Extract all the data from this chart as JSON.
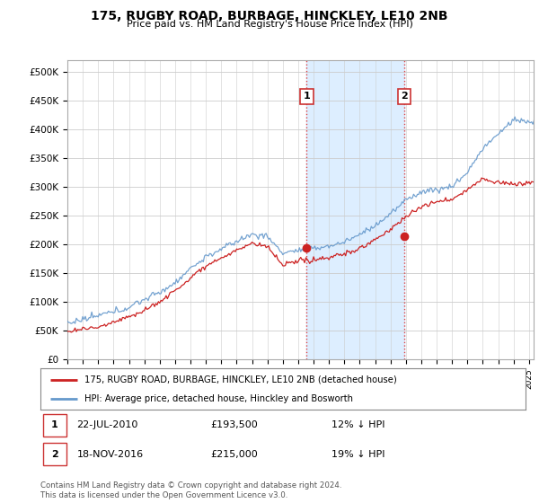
{
  "title": "175, RUGBY ROAD, BURBAGE, HINCKLEY, LE10 2NB",
  "subtitle": "Price paid vs. HM Land Registry's House Price Index (HPI)",
  "ytick_labels": [
    "£0",
    "£50K",
    "£100K",
    "£150K",
    "£200K",
    "£250K",
    "£300K",
    "£350K",
    "£400K",
    "£450K",
    "£500K"
  ],
  "ytick_vals": [
    0,
    50000,
    100000,
    150000,
    200000,
    250000,
    300000,
    350000,
    400000,
    450000,
    500000
  ],
  "ylim": [
    0,
    520000
  ],
  "xlim_left": 1995.0,
  "xlim_right": 2025.3,
  "hpi_color": "#6699cc",
  "price_color": "#cc2222",
  "sale1_x": 2010.55,
  "sale1_y": 193500,
  "sale2_x": 2016.88,
  "sale2_y": 215000,
  "vline_color": "#dd4444",
  "shade_color": "#ddeeff",
  "legend_line1": "175, RUGBY ROAD, BURBAGE, HINCKLEY, LE10 2NB (detached house)",
  "legend_line2": "HPI: Average price, detached house, Hinckley and Bosworth",
  "footer": "Contains HM Land Registry data © Crown copyright and database right 2024.\nThis data is licensed under the Open Government Licence v3.0.",
  "hpi_knots_x": [
    1995,
    1996,
    1997,
    1998,
    1999,
    2000,
    2001,
    2002,
    2003,
    2004,
    2005,
    2006,
    2007,
    2008,
    2009,
    2010,
    2011,
    2012,
    2013,
    2014,
    2015,
    2016,
    2017,
    2018,
    2019,
    2020,
    2021,
    2022,
    2023,
    2024,
    2025
  ],
  "hpi_knots_y": [
    63000,
    68000,
    74000,
    82000,
    92000,
    105000,
    118000,
    135000,
    158000,
    178000,
    192000,
    207000,
    218000,
    215000,
    185000,
    190000,
    193000,
    198000,
    205000,
    218000,
    235000,
    255000,
    280000,
    295000,
    300000,
    305000,
    330000,
    370000,
    395000,
    420000,
    415000
  ],
  "price_knots_x": [
    1995,
    1996,
    1997,
    1998,
    1999,
    2000,
    2001,
    2002,
    2003,
    2004,
    2005,
    2006,
    2007,
    2008,
    2009,
    2010,
    2011,
    2012,
    2013,
    2014,
    2015,
    2016,
    2017,
    2018,
    2019,
    2020,
    2021,
    2022,
    2023,
    2024,
    2025
  ],
  "price_knots_y": [
    48000,
    52000,
    57000,
    65000,
    74000,
    85000,
    100000,
    118000,
    140000,
    162000,
    175000,
    188000,
    200000,
    195000,
    162000,
    168000,
    172000,
    176000,
    182000,
    192000,
    208000,
    225000,
    248000,
    265000,
    272000,
    278000,
    295000,
    315000,
    308000,
    305000,
    308000
  ]
}
